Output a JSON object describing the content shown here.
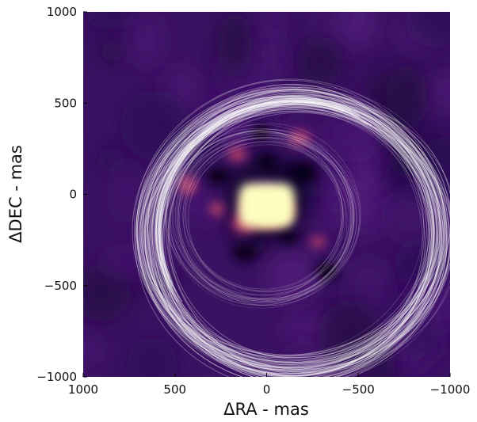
{
  "chart_data": {
    "type": "heatmap",
    "xlabel": "ΔRA - mas",
    "ylabel": "ΔDEC - mas",
    "xlim": [
      1000,
      -1000
    ],
    "ylim": [
      -1000,
      1000
    ],
    "x_ticks": [
      1000,
      500,
      0,
      -500,
      -1000
    ],
    "y_ticks": [
      -1000,
      -500,
      0,
      500,
      1000
    ],
    "x_tick_labels": [
      "1000",
      "500",
      "0",
      "−500",
      "−1000"
    ],
    "y_tick_labels": [
      "−1000",
      "−500",
      "0",
      "500",
      "1000"
    ],
    "grid": false,
    "colormap": "magma",
    "background_color": "#3b1262",
    "image_blobs": [
      {
        "x": 0,
        "y": -80,
        "rx": 160,
        "ry": 120,
        "level": 1.0
      },
      {
        "x": 120,
        "y": -160,
        "rx": 90,
        "ry": 70,
        "level": 0.75
      },
      {
        "x": 430,
        "y": 50,
        "rx": 70,
        "ry": 70,
        "level": 0.55
      },
      {
        "x": 160,
        "y": 220,
        "rx": 70,
        "ry": 55,
        "level": 0.5
      },
      {
        "x": -180,
        "y": 310,
        "rx": 80,
        "ry": 55,
        "level": 0.45
      },
      {
        "x": 270,
        "y": -80,
        "rx": 55,
        "ry": 55,
        "level": 0.5
      },
      {
        "x": -280,
        "y": -260,
        "rx": 60,
        "ry": 45,
        "level": 0.45
      }
    ],
    "dark_blobs": [
      {
        "x": 30,
        "y": 340,
        "rx": 70,
        "ry": 60
      },
      {
        "x": 260,
        "y": 100,
        "rx": 90,
        "ry": 60
      },
      {
        "x": -200,
        "y": 120,
        "rx": 110,
        "ry": 80
      },
      {
        "x": 120,
        "y": -320,
        "rx": 90,
        "ry": 60
      },
      {
        "x": -330,
        "y": -420,
        "rx": 80,
        "ry": 70
      },
      {
        "x": -120,
        "y": -230,
        "rx": 70,
        "ry": 50
      },
      {
        "x": 0,
        "y": 180,
        "rx": 60,
        "ry": 60
      }
    ],
    "orbit_tracks": {
      "count": 90,
      "center": [
        -150,
        -220
      ],
      "semi_major_range": [
        720,
        860
      ],
      "semi_minor_range": [
        680,
        820
      ],
      "rotation_deg_range": [
        -18,
        8
      ],
      "inner_count": 24,
      "inner_center": [
        20,
        -130
      ],
      "inner_radius_range": [
        420,
        520
      ],
      "color": "#ffffff"
    }
  }
}
